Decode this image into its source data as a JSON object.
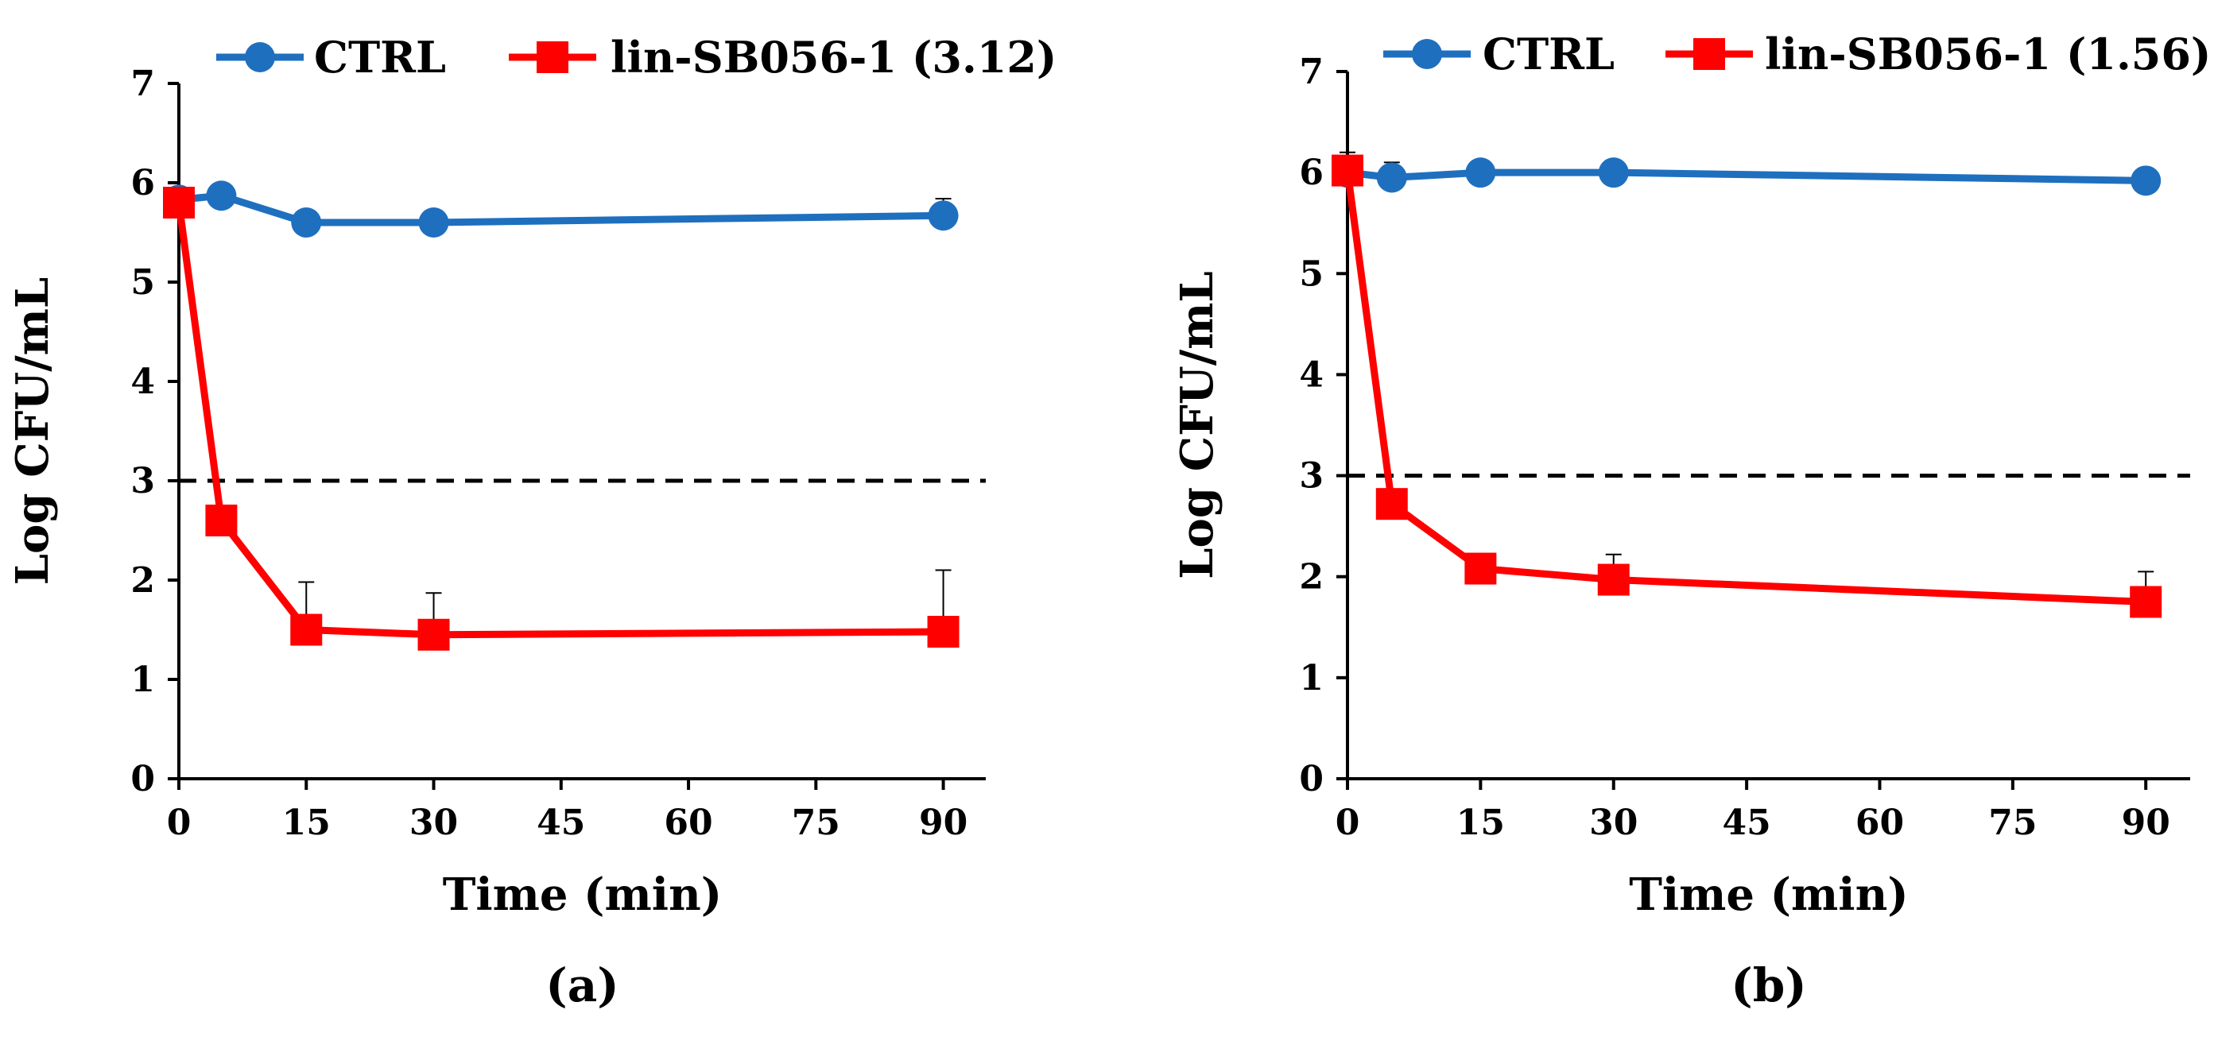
{
  "chart_data": [
    {
      "type": "line",
      "panel_label": "(a)",
      "xlabel": "Time (min)",
      "ylabel": "Log CFU/mL",
      "xlim": [
        0,
        95
      ],
      "ylim": [
        0,
        7
      ],
      "x_ticks": [
        0,
        15,
        30,
        45,
        60,
        75,
        90
      ],
      "y_ticks": [
        0,
        1,
        2,
        3,
        4,
        5,
        6,
        7
      ],
      "threshold": 3,
      "legend": {
        "position": "top"
      },
      "series": [
        {
          "name": "CTRL",
          "color": "#1F6FBF",
          "marker": "circle",
          "x": [
            0,
            5,
            15,
            30,
            90
          ],
          "y": [
            5.83,
            5.87,
            5.6,
            5.6,
            5.67
          ],
          "err": [
            0.05,
            0.12,
            0.05,
            0.08,
            0.17
          ]
        },
        {
          "name": "lin-SB056-1 (3.12)",
          "color": "#FF0000",
          "marker": "square",
          "x": [
            0,
            5,
            15,
            30,
            90
          ],
          "y": [
            5.8,
            2.6,
            1.5,
            1.45,
            1.48
          ],
          "err": [
            0.05,
            0.05,
            0.48,
            0.42,
            0.62
          ]
        }
      ]
    },
    {
      "type": "line",
      "panel_label": "(b)",
      "xlabel": "Time (min)",
      "ylabel": "Log CFU/mL",
      "xlim": [
        0,
        95
      ],
      "ylim": [
        0,
        7
      ],
      "x_ticks": [
        0,
        15,
        30,
        45,
        60,
        75,
        90
      ],
      "y_ticks": [
        0,
        1,
        2,
        3,
        4,
        5,
        6,
        7
      ],
      "threshold": 3,
      "legend": {
        "position": "top"
      },
      "series": [
        {
          "name": "CTRL",
          "color": "#1F6FBF",
          "marker": "circle",
          "x": [
            0,
            5,
            15,
            30,
            90
          ],
          "y": [
            6.0,
            5.95,
            6.0,
            6.0,
            5.92
          ],
          "err": [
            0.05,
            0.15,
            0.05,
            0.12,
            0.05
          ]
        },
        {
          "name": "lin-SB056-1 (1.56)",
          "color": "#FF0000",
          "marker": "square",
          "x": [
            0,
            5,
            15,
            30,
            90
          ],
          "y": [
            6.02,
            2.72,
            2.08,
            1.97,
            1.75
          ],
          "err": [
            0.18,
            0.05,
            0.05,
            0.25,
            0.3
          ]
        }
      ]
    }
  ]
}
